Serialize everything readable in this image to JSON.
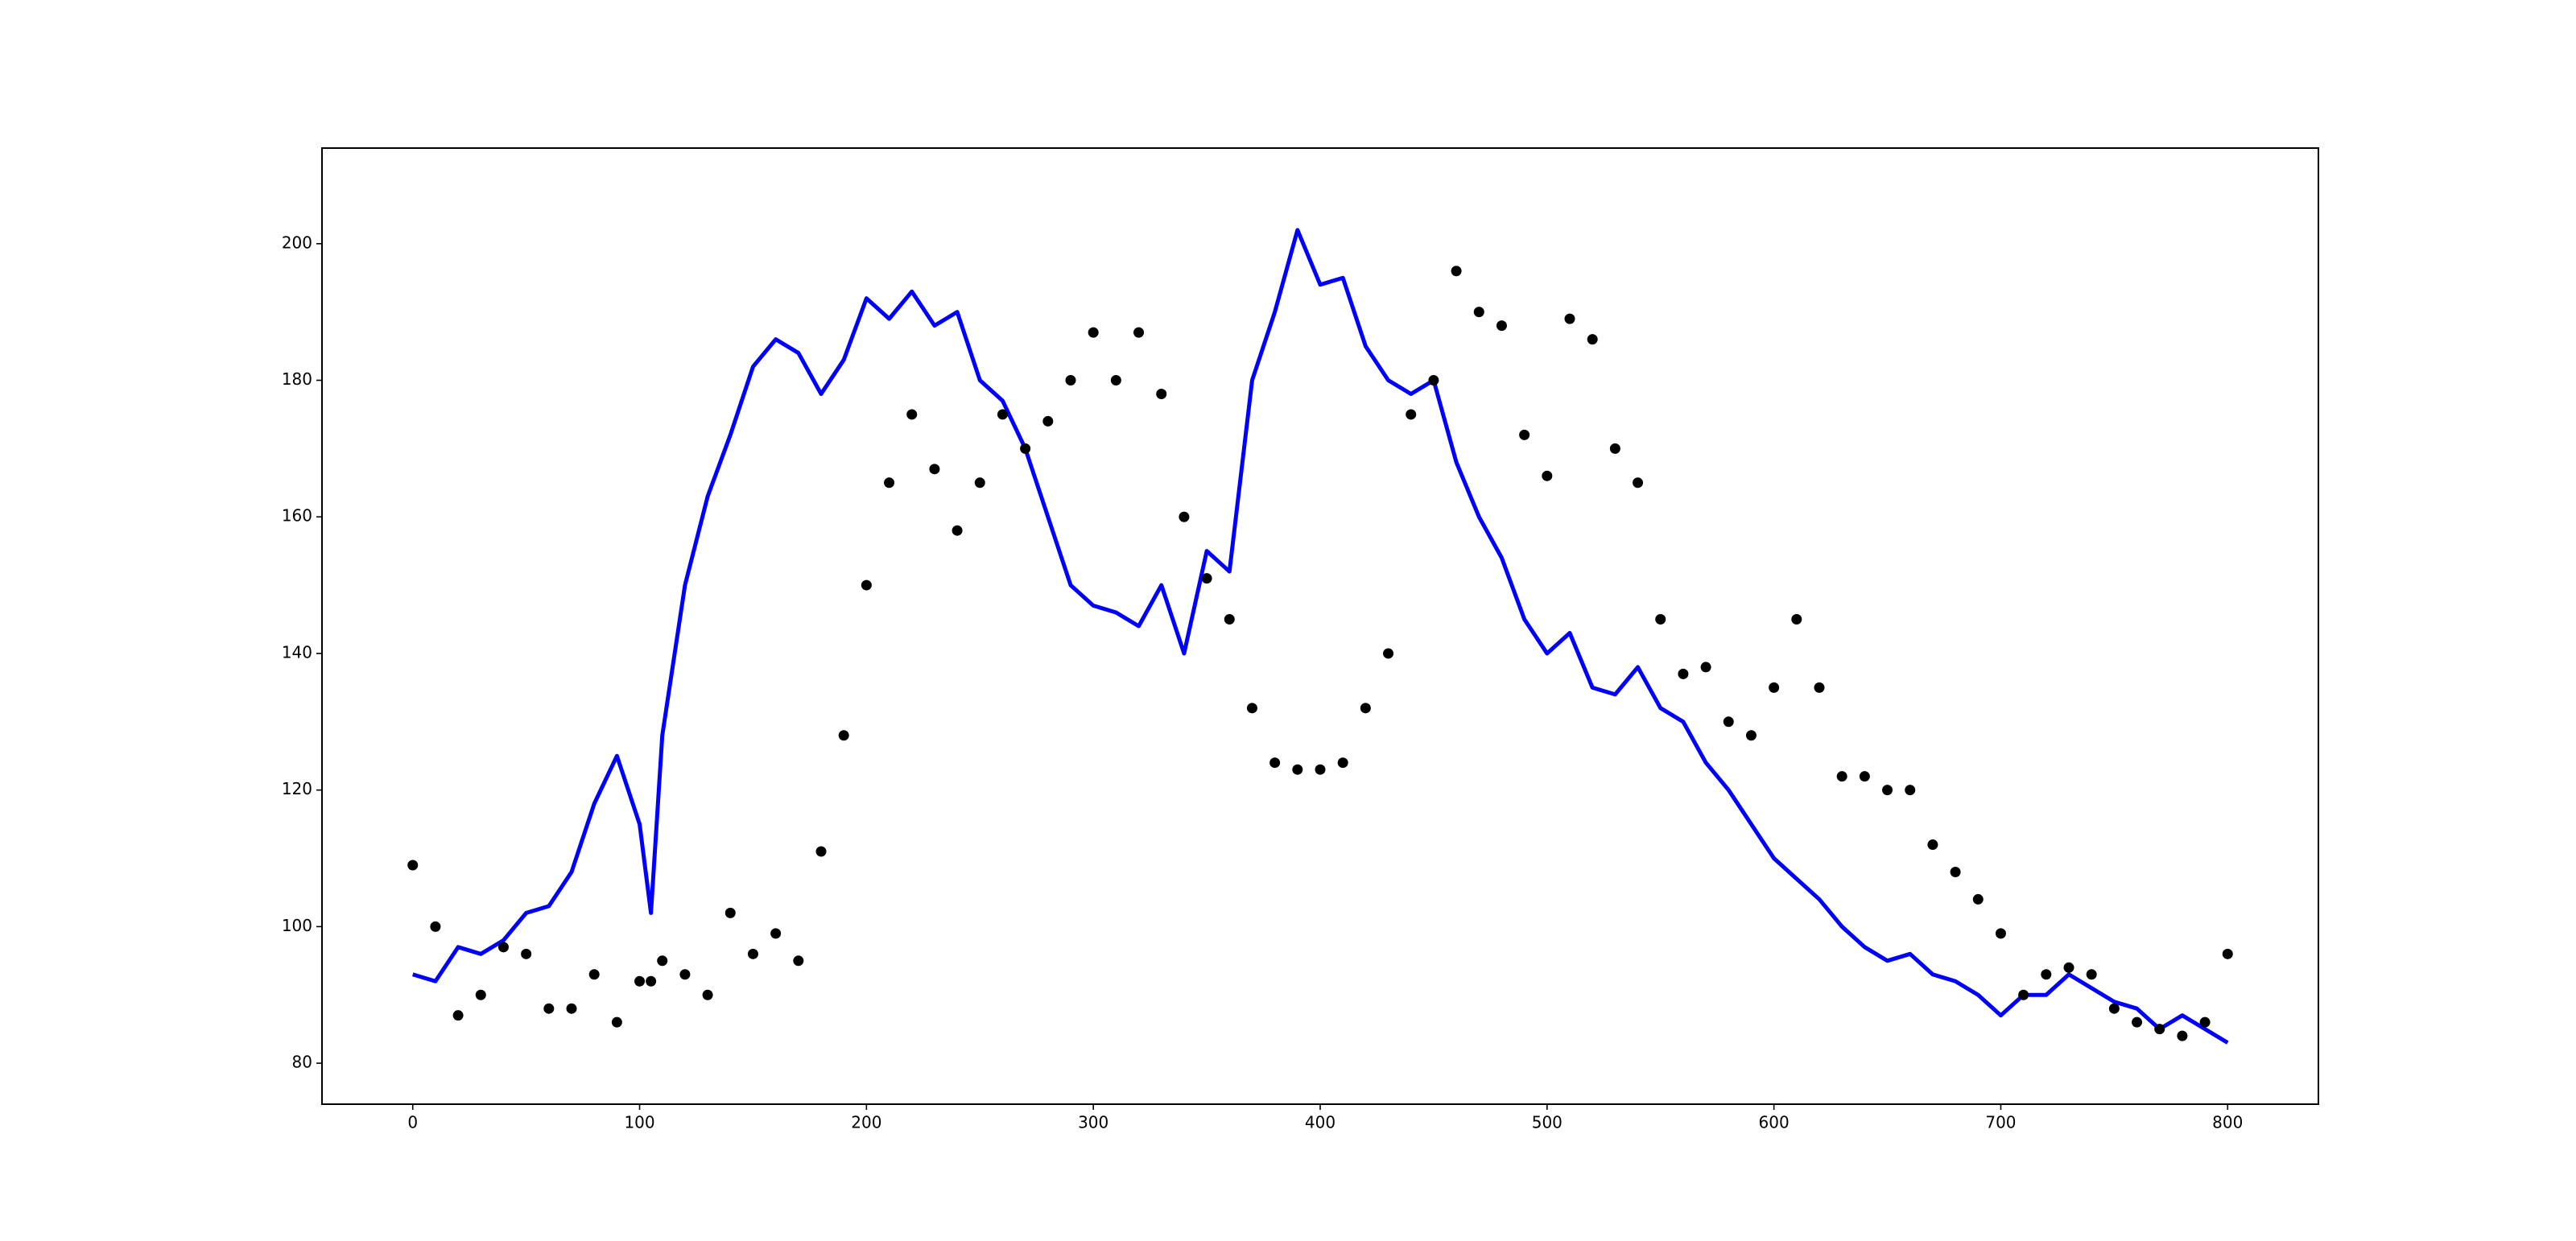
{
  "chart_data": {
    "type": "line",
    "x": [
      0,
      10,
      20,
      30,
      40,
      50,
      60,
      70,
      80,
      90,
      100,
      105,
      110,
      120,
      130,
      140,
      150,
      160,
      170,
      180,
      190,
      200,
      210,
      220,
      230,
      240,
      250,
      260,
      270,
      280,
      290,
      300,
      310,
      320,
      330,
      340,
      350,
      360,
      370,
      380,
      390,
      400,
      410,
      420,
      430,
      440,
      450,
      460,
      470,
      480,
      490,
      500,
      510,
      520,
      530,
      540,
      550,
      560,
      570,
      580,
      590,
      600,
      610,
      620,
      630,
      640,
      650,
      660,
      670,
      680,
      690,
      700,
      710,
      720,
      730,
      740,
      750,
      760,
      770,
      780,
      790,
      800
    ],
    "series": [
      {
        "style": "line",
        "color": "#0000ff",
        "values": [
          93,
          92,
          97,
          96,
          98,
          102,
          103,
          108,
          118,
          125,
          115,
          102,
          128,
          150,
          163,
          172,
          182,
          186,
          184,
          178,
          183,
          192,
          189,
          193,
          188,
          190,
          180,
          177,
          170,
          160,
          150,
          147,
          146,
          144,
          150,
          140,
          155,
          152,
          180,
          190,
          202,
          194,
          195,
          185,
          180,
          178,
          180,
          168,
          160,
          154,
          145,
          140,
          143,
          135,
          134,
          138,
          132,
          130,
          124,
          120,
          115,
          110,
          107,
          104,
          100,
          97,
          95,
          96,
          93,
          92,
          90,
          87,
          90,
          90,
          93,
          91,
          89,
          88,
          85,
          87,
          85,
          83
        ]
      },
      {
        "style": "points",
        "color": "#000000",
        "values": [
          109,
          100,
          87,
          90,
          97,
          96,
          88,
          88,
          93,
          86,
          92,
          92,
          95,
          93,
          90,
          102,
          96,
          99,
          95,
          111,
          128,
          150,
          165,
          175,
          167,
          158,
          165,
          175,
          170,
          174,
          180,
          187,
          180,
          187,
          178,
          160,
          151,
          145,
          132,
          124,
          123,
          123,
          124,
          132,
          140,
          175,
          180,
          196,
          190,
          188,
          172,
          166,
          189,
          186,
          170,
          165,
          145,
          137,
          138,
          130,
          128,
          135,
          145,
          135,
          122,
          122,
          120,
          120,
          112,
          108,
          104,
          99,
          90,
          93,
          94,
          93,
          88,
          86,
          85,
          84,
          86,
          96
        ]
      }
    ],
    "xlim": [
      -40,
      840
    ],
    "xticks": [
      0,
      100,
      200,
      300,
      400,
      500,
      600,
      700,
      800
    ],
    "ylim": [
      74,
      214
    ],
    "yticks": [
      80,
      100,
      120,
      140,
      160,
      180,
      200
    ]
  }
}
